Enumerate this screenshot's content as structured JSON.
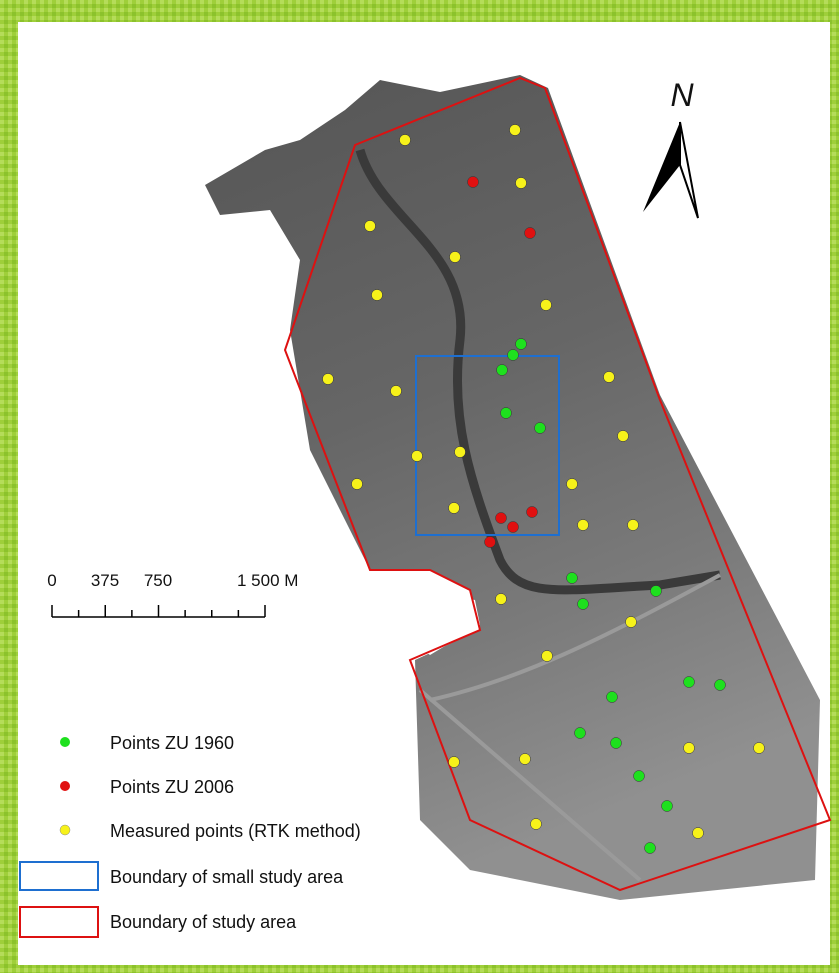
{
  "north_label": "N",
  "scale_bar": {
    "labels": [
      "0",
      "375",
      "750",
      "1 500 M"
    ]
  },
  "legend": {
    "items": [
      "Points ZU 1960",
      "Points ZU 2006",
      "Measured points (RTK method)",
      "Boundary of small study area",
      "Boundary of study area"
    ]
  }
}
